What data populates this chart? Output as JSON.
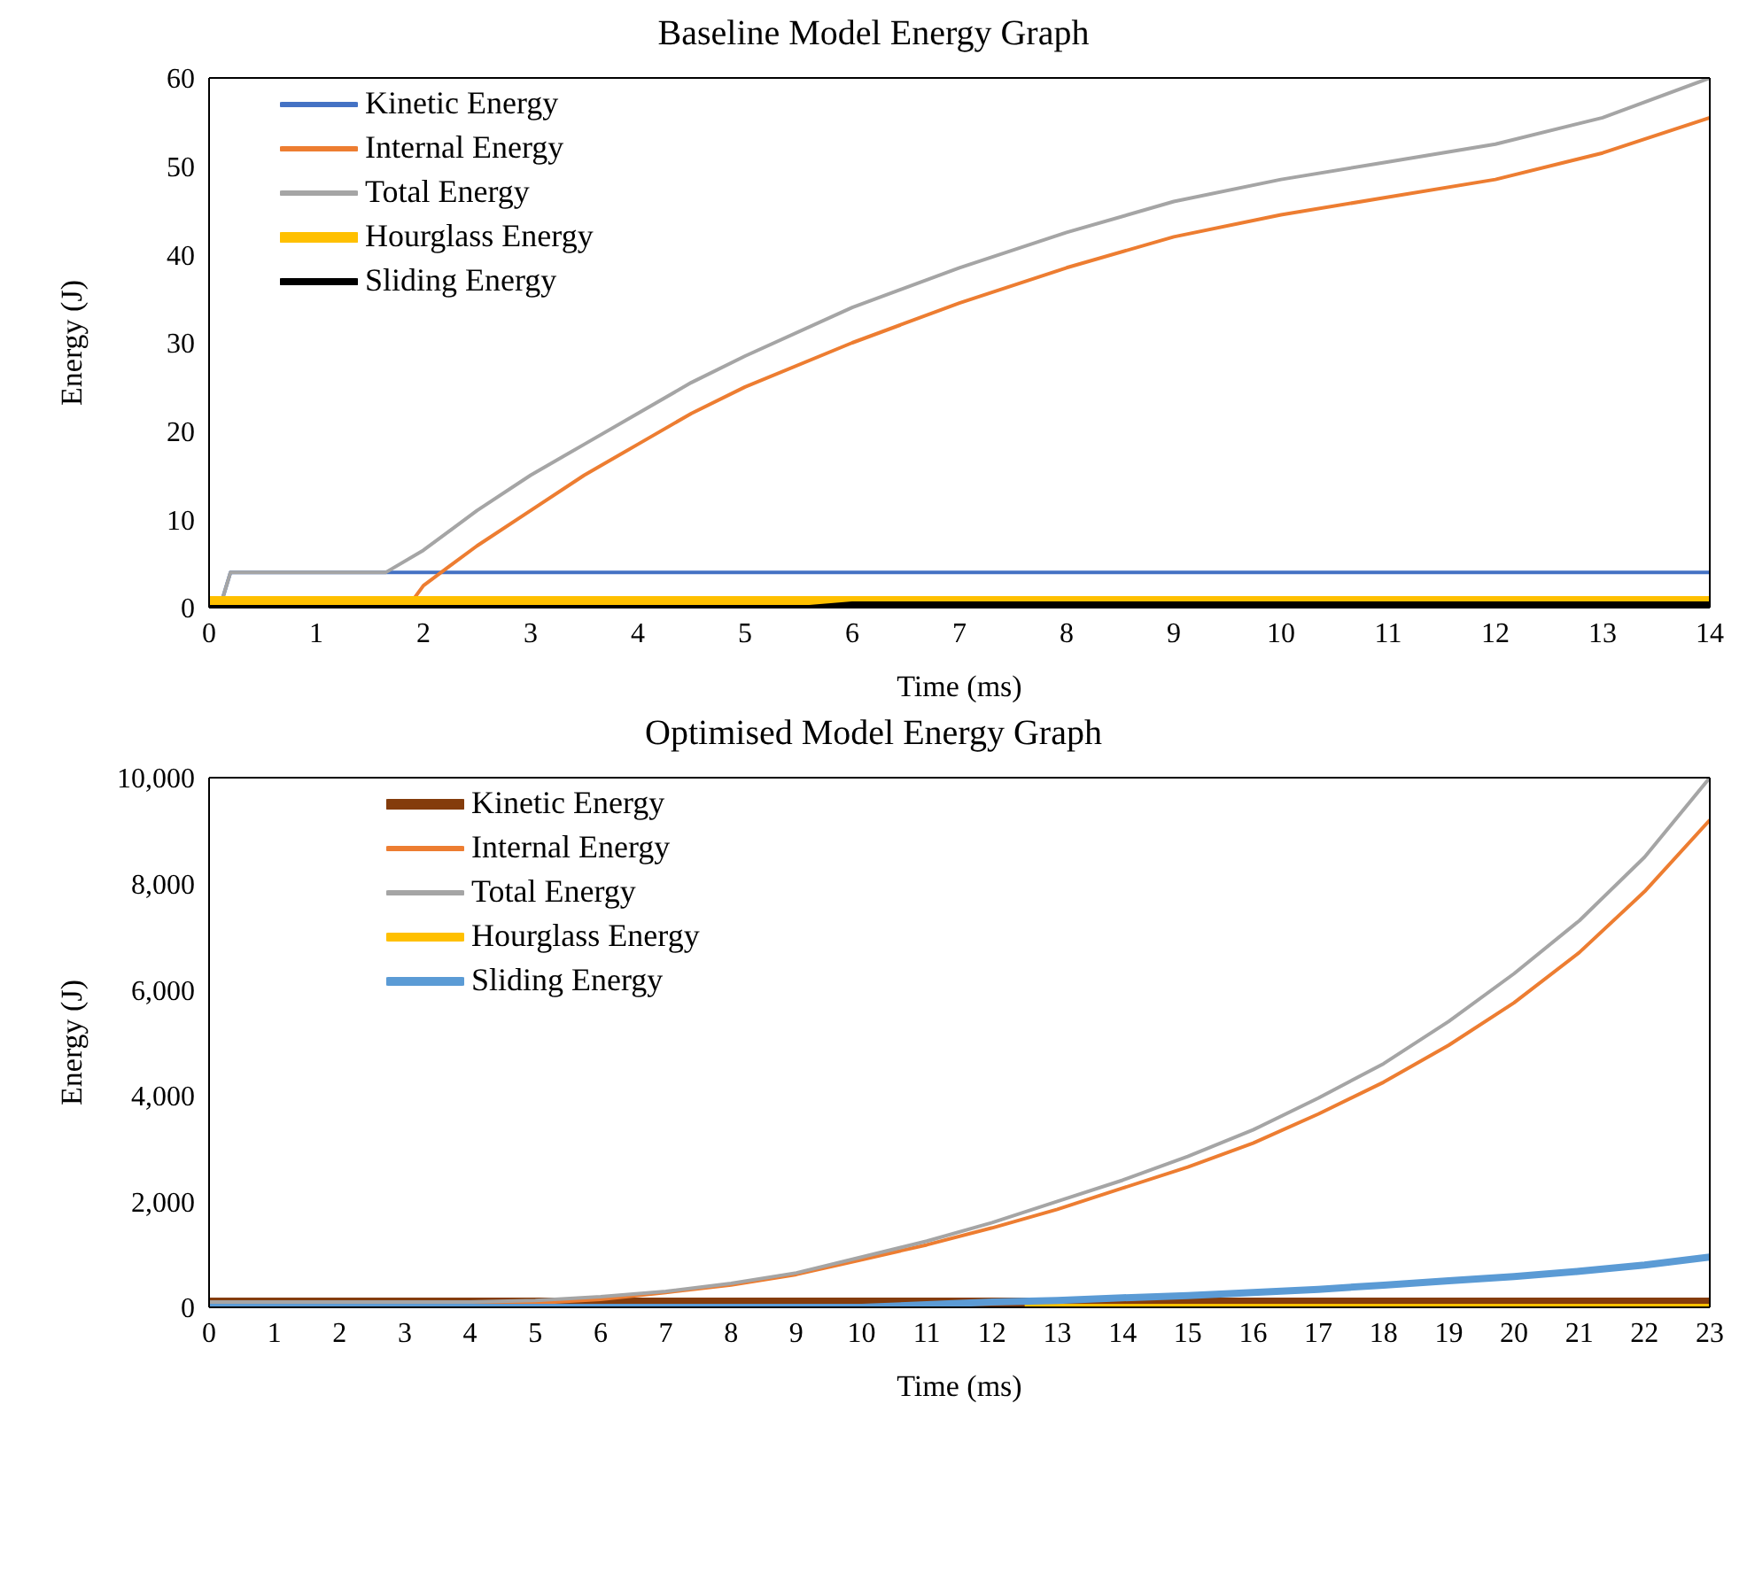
{
  "chart_data": [
    {
      "type": "line",
      "title": "Baseline Model Energy Graph",
      "xlabel": "Time (ms)",
      "ylabel": "Energy (J)",
      "xlim": [
        0,
        14
      ],
      "xticks": [
        0,
        1,
        2,
        3,
        4,
        5,
        6,
        7,
        8,
        9,
        10,
        11,
        12,
        13,
        14
      ],
      "ylim": [
        0,
        60
      ],
      "yticks": [
        0,
        10,
        20,
        30,
        40,
        50,
        60
      ],
      "grid": false,
      "legend": "top left",
      "marker": "none",
      "line_style": "solid",
      "series": [
        {
          "name": "Kinetic Energy",
          "color": "#4472c4",
          "x": [
            0.1,
            0.2,
            1,
            2,
            3,
            4,
            5,
            6,
            7,
            8,
            9,
            10,
            11,
            12,
            13,
            14
          ],
          "values": [
            0,
            4,
            4,
            4,
            4,
            4,
            4,
            4,
            4,
            4,
            4,
            4,
            4,
            4,
            4,
            4
          ]
        },
        {
          "name": "Internal Energy",
          "color": "#ed7d31",
          "x": [
            0,
            1,
            1.85,
            2,
            2.5,
            3,
            3.5,
            4,
            4.5,
            5,
            6,
            7,
            8,
            9,
            10,
            11,
            12,
            13,
            14
          ],
          "values": [
            0,
            0,
            0,
            2.5,
            7,
            11,
            15,
            18.5,
            22,
            25,
            30,
            34.5,
            38.5,
            42,
            44.5,
            46.5,
            48.5,
            51.5,
            55.5
          ]
        },
        {
          "name": "Total Energy",
          "color": "#a5a5a5",
          "x": [
            0.1,
            0.2,
            1,
            1.65,
            2,
            2.5,
            3,
            3.5,
            4,
            4.5,
            5,
            6,
            7,
            8,
            9,
            10,
            11,
            12,
            13,
            14
          ],
          "values": [
            0,
            4,
            4,
            4,
            6.5,
            11,
            15,
            18.5,
            22,
            25.5,
            28.5,
            34,
            38.5,
            42.5,
            46,
            48.5,
            50.5,
            52.5,
            55.5,
            60
          ]
        },
        {
          "name": "Hourglass Energy",
          "color": "#ffc000",
          "x": [
            0,
            2,
            4,
            6,
            8,
            10,
            12,
            14
          ],
          "values": [
            0.8,
            0.8,
            0.8,
            0.8,
            0.8,
            0.8,
            0.8,
            0.8
          ]
        },
        {
          "name": "Sliding Energy",
          "color": "#000000",
          "x": [
            0,
            2,
            4,
            5.6,
            6,
            8,
            10,
            12,
            14
          ],
          "values": [
            0,
            0,
            0,
            0,
            0.4,
            0.4,
            0.4,
            0.4,
            0.4
          ]
        }
      ]
    },
    {
      "type": "line",
      "title": "Optimised Model Energy Graph",
      "xlabel": "Time (ms)",
      "ylabel": "Energy (J)",
      "xlim": [
        0,
        23
      ],
      "xticks": [
        0,
        1,
        2,
        3,
        4,
        5,
        6,
        7,
        8,
        9,
        10,
        11,
        12,
        13,
        14,
        15,
        16,
        17,
        18,
        19,
        20,
        21,
        22,
        23
      ],
      "ylim": [
        0,
        10000
      ],
      "yticks": [
        0,
        {
          "value": 2000,
          "label": "2,000"
        },
        {
          "value": 4000,
          "label": "4,000"
        },
        {
          "value": 6000,
          "label": "6,000"
        },
        {
          "value": 8000,
          "label": "8,000"
        },
        {
          "value": 10000,
          "label": "10,000"
        }
      ],
      "grid": false,
      "legend": "top left",
      "marker": "none",
      "line_style": "solid",
      "series": [
        {
          "name": "Kinetic Energy",
          "color": "#843c0c",
          "x": [
            0,
            2,
            4,
            6,
            8,
            10,
            12,
            14,
            16,
            18,
            20,
            22,
            23
          ],
          "values": [
            100,
            100,
            100,
            100,
            100,
            100,
            100,
            100,
            100,
            100,
            100,
            100,
            100
          ]
        },
        {
          "name": "Internal Energy",
          "color": "#ed7d31",
          "x": [
            0,
            2,
            4,
            5,
            6,
            7,
            8,
            9,
            10,
            11,
            12,
            13,
            14,
            15,
            16,
            17,
            18,
            19,
            20,
            21,
            22,
            23
          ],
          "values": [
            50,
            50,
            50,
            80,
            150,
            280,
            420,
            620,
            900,
            1180,
            1500,
            1850,
            2250,
            2650,
            3100,
            3650,
            4250,
            4950,
            5750,
            6700,
            7850,
            9200
          ]
        },
        {
          "name": "Total Energy",
          "color": "#a5a5a5",
          "x": [
            0,
            2,
            4,
            5,
            6,
            7,
            8,
            9,
            10,
            11,
            12,
            13,
            14,
            15,
            16,
            17,
            18,
            19,
            20,
            21,
            22,
            23
          ],
          "values": [
            100,
            100,
            100,
            130,
            200,
            300,
            450,
            650,
            950,
            1250,
            1600,
            2000,
            2400,
            2850,
            3350,
            3950,
            4600,
            5400,
            6300,
            7300,
            8500,
            10000
          ]
        },
        {
          "name": "Hourglass Energy",
          "color": "#ffc000",
          "x": [
            12.5,
            16,
            20,
            23
          ],
          "values": [
            0,
            0,
            0,
            0
          ]
        },
        {
          "name": "Sliding Energy",
          "color": "#5b9bd5",
          "x": [
            0,
            5,
            10,
            11,
            12,
            13,
            14,
            15,
            16,
            17,
            18,
            19,
            20,
            21,
            22,
            23
          ],
          "values": [
            0,
            0,
            0,
            50,
            100,
            130,
            180,
            220,
            280,
            340,
            420,
            500,
            580,
            680,
            800,
            950
          ]
        }
      ]
    }
  ]
}
